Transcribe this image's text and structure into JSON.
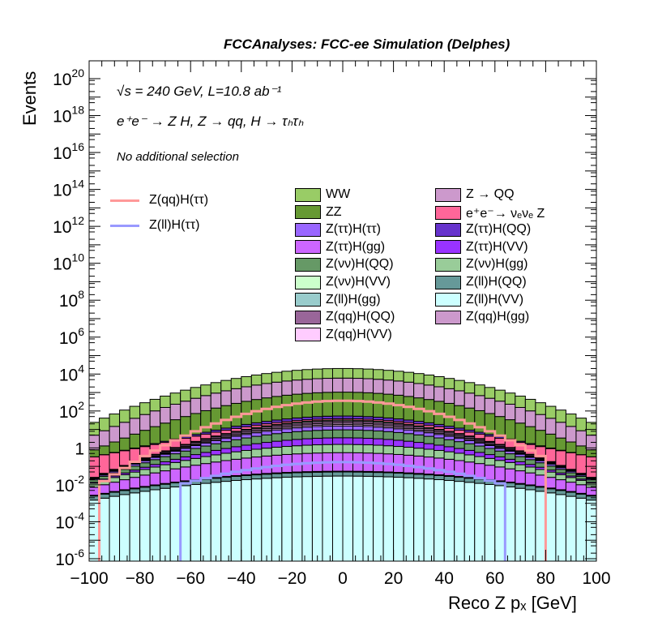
{
  "chart_data": {
    "type": "bar",
    "subtype": "stacked-histogram-log",
    "title": "FCCAnalyses: FCC-ee Simulation (Delphes)",
    "annotations": [
      "√s = 240 GeV, L=10.8 ab⁻¹",
      "e⁺e⁻ → Z H, Z → qq, H → τₕτₕ",
      "No additional selection"
    ],
    "xlabel": "Reco Z pₓ [GeV]",
    "ylabel": "Events",
    "xlim": [
      -100,
      100
    ],
    "ylim": [
      1e-06,
      1e+21
    ],
    "yscale": "log",
    "bins": 50,
    "x_ticks": [
      "−100",
      "−80",
      "−60",
      "−40",
      "−20",
      "0",
      "20",
      "40",
      "60",
      "80",
      "100"
    ],
    "y_ticks": [
      {
        "exp": "20"
      },
      {
        "exp": "18"
      },
      {
        "exp": "16"
      },
      {
        "exp": "14"
      },
      {
        "exp": "12"
      },
      {
        "exp": "10"
      },
      {
        "exp": "8"
      },
      {
        "exp": "6"
      },
      {
        "exp": "4"
      },
      {
        "exp": "2"
      },
      {
        "plain": "1"
      },
      {
        "exp": "-2"
      },
      {
        "exp": "-4"
      },
      {
        "exp": "-6"
      }
    ],
    "shape_model": "gaussian: value(x) = peak * exp(-x^2 / (2 sigma^2)) per bin center",
    "stack_bottom_to_top": [
      {
        "name": "Z(ll)H(VV)",
        "color": "#ccffff",
        "peak": 0.03,
        "sigma": 40
      },
      {
        "name": "Z(ll)H(QQ)",
        "color": "#669999",
        "peak": 0.02,
        "sigma": 40
      },
      {
        "name": "Z(ll)H(gg)",
        "color": "#99cccc",
        "peak": 0.005,
        "sigma": 40
      },
      {
        "name": "Z(ττ)H(gg)",
        "color": "#cc66ff",
        "peak": 0.5,
        "sigma": 32
      },
      {
        "name": "Z(νν)H(gg)",
        "color": "#99cc99",
        "peak": 1.0,
        "sigma": 30
      },
      {
        "name": "Z(ττ)H(VV)",
        "color": "#9933ff",
        "peak": 2,
        "sigma": 26
      },
      {
        "name": "Z(νν)H(QQ)",
        "color": "#669966",
        "peak": 6,
        "sigma": 26
      },
      {
        "name": "Z(ττ)H(ττ)",
        "color": "#9966ff",
        "peak": 6,
        "sigma": 25
      },
      {
        "name": "Z(qq)H(VV)",
        "color": "#ffccff",
        "peak": 3,
        "sigma": 24
      },
      {
        "name": "Z(qq)H(gg)",
        "color": "#cc99cc",
        "peak": 4,
        "sigma": 24
      },
      {
        "name": "Z(qq)H(QQ)",
        "color": "#996699",
        "peak": 6,
        "sigma": 24
      },
      {
        "name": "Z(νν)H(VV)",
        "color": "#ccffcc",
        "peak": 4,
        "sigma": 24
      },
      {
        "name": "e⁺e⁻→ νₑνₑ Z",
        "color": "#ff6699",
        "peak": 6,
        "sigma": 40
      },
      {
        "name": "Z(ττ)H(QQ)",
        "color": "#6633cc",
        "peak": 15,
        "sigma": 25
      },
      {
        "name": "ZZ",
        "color": "#669933",
        "peak": 1000,
        "sigma": 25
      },
      {
        "name": "Z → QQ",
        "color": "#cc99cc",
        "peak": 5000,
        "sigma": 26
      },
      {
        "name": "WW",
        "color": "#99cc66",
        "peak": 14000,
        "sigma": 27
      }
    ],
    "lines": [
      {
        "name": "Z(qq)H(ττ)",
        "color": "#ff9999",
        "peak": 360,
        "sigma": 21,
        "range": [
          -96,
          80
        ]
      },
      {
        "name": "Z(ll)H(ττ)",
        "color": "#9999ff",
        "peak": 0.17,
        "sigma": 27,
        "range": [
          -64,
          64
        ]
      }
    ],
    "legend": {
      "placement": "top-right",
      "col1": [
        "WW",
        "ZZ",
        "Z(ττ)H(ττ)",
        "Z(ττ)H(gg)",
        "Z(νν)H(QQ)",
        "Z(νν)H(VV)",
        "Z(ll)H(gg)",
        "Z(qq)H(QQ)",
        "Z(qq)H(VV)"
      ],
      "col2": [
        "Z → QQ",
        "e⁺e⁻→ νₑνₑ Z",
        "Z(ττ)H(QQ)",
        "Z(ττ)H(VV)",
        "Z(νν)H(gg)",
        "Z(ll)H(QQ)",
        "Z(ll)H(VV)",
        "Z(qq)H(gg)"
      ],
      "lines": [
        "Z(qq)H(ττ)",
        "Z(ll)H(ττ)"
      ]
    }
  }
}
